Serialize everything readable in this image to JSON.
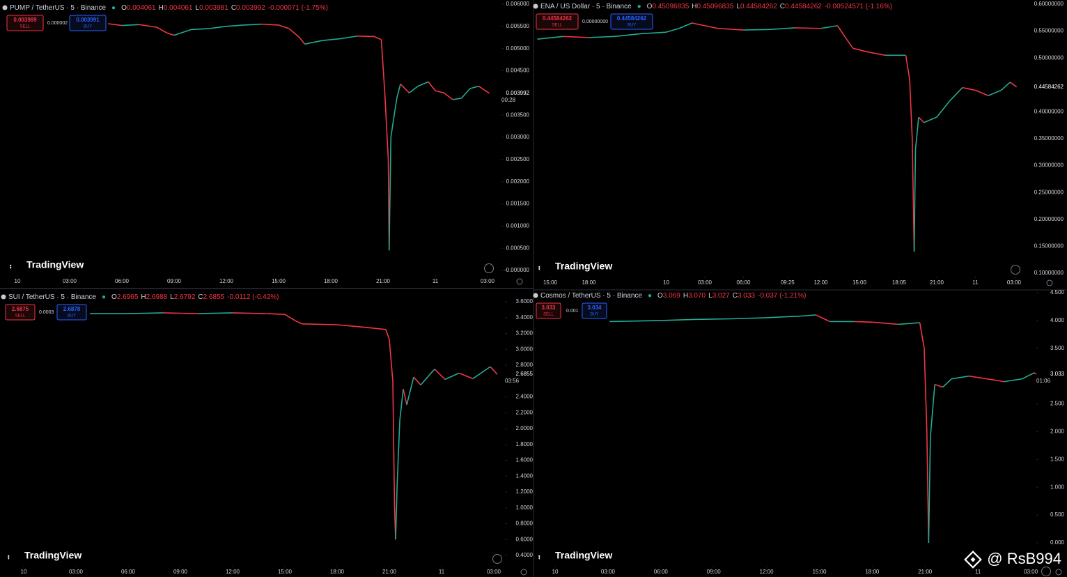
{
  "chart_data": [
    {
      "type": "line",
      "title": "PUMP / TetherUS · 5 · Binance",
      "ohlc": [
        {
          "label": "O",
          "value": "0.004061"
        },
        {
          "label": "H",
          "value": "0.004061"
        },
        {
          "label": "L",
          "value": "0.003981"
        },
        {
          "label": "C",
          "value": "0.003992"
        }
      ],
      "change": "-0.000071 (-1.75%)",
      "sell": {
        "price": "0.003989",
        "label": "SELL"
      },
      "spread": "0.000002",
      "buy": {
        "price": "0.003991",
        "label": "BUY"
      },
      "last_price": "0.003992",
      "countdown": "00:28",
      "logo": "TradingView",
      "up_color": "#22ab94",
      "down_color": "#f23645",
      "x": [
        5.2,
        6,
        7,
        8,
        8.6,
        9,
        10,
        11,
        12,
        13,
        14,
        15,
        15.6,
        16.2,
        16.5,
        17.5,
        18.5,
        19.5,
        20.5,
        20.9,
        21.0,
        21.1,
        21.3,
        21.35,
        21.45,
        21.6,
        21.8,
        22.0,
        22.5,
        23,
        23.6,
        24,
        24.5,
        25,
        25.5,
        26,
        26.5,
        27.1
      ],
      "values": [
        0.00556,
        0.00552,
        0.00554,
        0.00548,
        0.00535,
        0.0053,
        0.00543,
        0.00545,
        0.0055,
        0.00553,
        0.00555,
        0.00553,
        0.00545,
        0.00525,
        0.0051,
        0.00518,
        0.00522,
        0.00528,
        0.00527,
        0.0052,
        0.0046,
        0.004,
        0.0025,
        0.00045,
        0.003,
        0.0034,
        0.0039,
        0.0042,
        0.004,
        0.00415,
        0.00425,
        0.00405,
        0.004,
        0.00385,
        0.00388,
        0.0041,
        0.00415,
        0.003992
      ],
      "xlim": [
        -1,
        27.8
      ],
      "xticks": [
        {
          "value": 0,
          "label": "10"
        },
        {
          "value": 3,
          "label": "03:00"
        },
        {
          "value": 6,
          "label": "06:00"
        },
        {
          "value": 9,
          "label": "09:00"
        },
        {
          "value": 12,
          "label": "12:00"
        },
        {
          "value": 15,
          "label": "15:00"
        },
        {
          "value": 18,
          "label": "18:00"
        },
        {
          "value": 21,
          "label": "21:00"
        },
        {
          "value": 24,
          "label": "11"
        },
        {
          "value": 27,
          "label": "03:00"
        }
      ],
      "ylim": [
        0,
        0.006
      ],
      "yticks": [
        {
          "value": 0.006,
          "label": "0.006000"
        },
        {
          "value": 0.0055,
          "label": "0.005500"
        },
        {
          "value": 0.005,
          "label": "0.005000"
        },
        {
          "value": 0.0045,
          "label": "0.004500"
        },
        {
          "value": 0.0035,
          "label": "0.003500"
        },
        {
          "value": 0.003,
          "label": "0.003000"
        },
        {
          "value": 0.0025,
          "label": "0.002500"
        },
        {
          "value": 0.002,
          "label": "0.002000"
        },
        {
          "value": 0.0015,
          "label": "0.001500"
        },
        {
          "value": 0.001,
          "label": "0.001000"
        },
        {
          "value": 0.0005,
          "label": "0.000500"
        },
        {
          "value": 0,
          "label": "-0.000000"
        }
      ]
    },
    {
      "type": "line",
      "title": "ENA / US Dollar · 5 · Binance",
      "ohlc": [
        {
          "label": "O",
          "value": "0.45096835"
        },
        {
          "label": "H",
          "value": "0.45096835"
        },
        {
          "label": "L",
          "value": "0.44584262"
        },
        {
          "label": "C",
          "value": "0.44584262"
        }
      ],
      "change": "-0.00524571 (-1.16%)",
      "sell": {
        "price": "0.44584262",
        "label": "SELL"
      },
      "spread": "0.00000000",
      "buy": {
        "price": "0.44584262",
        "label": "BUY"
      },
      "last_price": "0.44584262",
      "logo": "TradingView",
      "up_color": "#22ab94",
      "down_color": "#f23645",
      "x": [
        -10,
        -8,
        -6,
        -4,
        -2,
        0,
        1,
        2,
        4,
        6,
        8,
        10,
        12,
        13.3,
        14,
        14.5,
        15.5,
        17,
        18.6,
        18.9,
        19.1,
        19.25,
        19.35,
        19.6,
        20,
        21,
        22,
        23,
        24,
        25,
        26,
        26.7,
        27.2
      ],
      "values": [
        0.535,
        0.54,
        0.538,
        0.54,
        0.545,
        0.548,
        0.555,
        0.565,
        0.555,
        0.552,
        0.553,
        0.556,
        0.555,
        0.56,
        0.535,
        0.518,
        0.512,
        0.505,
        0.505,
        0.46,
        0.35,
        0.14,
        0.33,
        0.39,
        0.38,
        0.39,
        0.42,
        0.445,
        0.44,
        0.43,
        0.44,
        0.455,
        0.446
      ],
      "xlim": [
        -10,
        28.3
      ],
      "xticks": [
        {
          "value": -9,
          "label": "15:00"
        },
        {
          "value": -6,
          "label": "18:00"
        },
        {
          "value": 0,
          "label": "10"
        },
        {
          "value": 3,
          "label": "03:00"
        },
        {
          "value": 6,
          "label": "06:00"
        },
        {
          "value": 9.42,
          "label": "09:25"
        },
        {
          "value": 12,
          "label": "12:00"
        },
        {
          "value": 15,
          "label": "15:00"
        },
        {
          "value": 18.08,
          "label": "18:05"
        },
        {
          "value": 21,
          "label": "21:00"
        },
        {
          "value": 24,
          "label": "11"
        },
        {
          "value": 27,
          "label": "03:00"
        }
      ],
      "ylim": [
        0.1,
        0.6
      ],
      "yticks": [
        {
          "value": 0.6,
          "label": "0.60000000"
        },
        {
          "value": 0.55,
          "label": "0.55000000"
        },
        {
          "value": 0.5,
          "label": "0.50000000"
        },
        {
          "value": 0.4,
          "label": "0.40000000"
        },
        {
          "value": 0.35,
          "label": "0.35000000"
        },
        {
          "value": 0.3,
          "label": "0.30000000"
        },
        {
          "value": 0.25,
          "label": "0.25000000"
        },
        {
          "value": 0.2,
          "label": "0.20000000"
        },
        {
          "value": 0.15,
          "label": "0.15000000"
        },
        {
          "value": 0.1,
          "label": "0.10000000"
        }
      ]
    },
    {
      "type": "line",
      "title": "SUI / TetherUS · 5 · Binance",
      "ohlc": [
        {
          "label": "O",
          "value": "2.6965"
        },
        {
          "label": "H",
          "value": "2.6988"
        },
        {
          "label": "L",
          "value": "2.6792"
        },
        {
          "label": "C",
          "value": "2.6855"
        }
      ],
      "change": "-0.0112 (-0.42%)",
      "sell": {
        "price": "2.6875",
        "label": "SELL"
      },
      "spread": "0.0003",
      "buy": {
        "price": "2.6878",
        "label": "BUY"
      },
      "last_price": "2.6855",
      "countdown": "03:56",
      "logo": "TradingView",
      "up_color": "#22ab94",
      "down_color": "#f23645",
      "x": [
        3.8,
        6,
        8,
        10,
        12,
        14,
        15,
        15.6,
        16,
        18,
        19.5,
        20.8,
        21.0,
        21.2,
        21.3,
        21.36,
        21.45,
        21.6,
        21.8,
        22.0,
        22.4,
        22.8,
        23.6,
        24.2,
        25,
        25.8,
        26.8,
        27.2
      ],
      "values": [
        3.45,
        3.45,
        3.46,
        3.45,
        3.46,
        3.45,
        3.44,
        3.36,
        3.32,
        3.31,
        3.28,
        3.25,
        3.12,
        2.6,
        1.0,
        0.6,
        1.3,
        2.1,
        2.5,
        2.3,
        2.65,
        2.55,
        2.75,
        2.62,
        2.7,
        2.63,
        2.78,
        2.6855
      ],
      "xlim": [
        -1,
        27.4
      ],
      "xticks": [
        {
          "value": 0,
          "label": "10"
        },
        {
          "value": 3,
          "label": "03:00"
        },
        {
          "value": 6,
          "label": "06:00"
        },
        {
          "value": 9,
          "label": "09:00"
        },
        {
          "value": 12,
          "label": "12:00"
        },
        {
          "value": 15,
          "label": "15:00"
        },
        {
          "value": 18,
          "label": "18:00"
        },
        {
          "value": 21,
          "label": "21:00"
        },
        {
          "value": 24,
          "label": "11"
        },
        {
          "value": 27,
          "label": "03:00"
        }
      ],
      "ylim": [
        0.4,
        3.6
      ],
      "yticks": [
        {
          "value": 3.6,
          "label": "3.6000"
        },
        {
          "value": 3.4,
          "label": "3.4000"
        },
        {
          "value": 3.2,
          "label": "3.2000"
        },
        {
          "value": 3.0,
          "label": "3.0000"
        },
        {
          "value": 2.8,
          "label": "2.8000"
        },
        {
          "value": 2.4,
          "label": "2.4000"
        },
        {
          "value": 2.2,
          "label": "2.2000"
        },
        {
          "value": 2.0,
          "label": "2.0000"
        },
        {
          "value": 1.8,
          "label": "1.8000"
        },
        {
          "value": 1.6,
          "label": "1.6000"
        },
        {
          "value": 1.4,
          "label": "1.4000"
        },
        {
          "value": 1.2,
          "label": "1.2000"
        },
        {
          "value": 1.0,
          "label": "1.0000"
        },
        {
          "value": 0.8,
          "label": "0.8000"
        },
        {
          "value": 0.6,
          "label": "0.6000"
        },
        {
          "value": 0.4,
          "label": "0.4000"
        }
      ]
    },
    {
      "type": "line",
      "title": "Cosmos / TetherUS · 5 · Binance",
      "ohlc": [
        {
          "label": "O",
          "value": "3.069"
        },
        {
          "label": "H",
          "value": "3.070"
        },
        {
          "label": "L",
          "value": "3.027"
        },
        {
          "label": "C",
          "value": "3.033"
        }
      ],
      "change": "-0.037 (-1.21%)",
      "sell": {
        "price": "3.033",
        "label": "SELL"
      },
      "spread": "0.001",
      "buy": {
        "price": "3.034",
        "label": "BUY"
      },
      "last_price": "3.033",
      "countdown": "01:06",
      "logo": "TradingView",
      "up_color": "#22ab94",
      "down_color": "#f23645",
      "x": [
        3.1,
        6,
        8,
        10,
        12,
        14,
        14.8,
        15.6,
        17,
        18,
        19.5,
        20.7,
        20.95,
        21.1,
        21.2,
        21.3,
        21.55,
        22,
        22.5,
        23.5,
        24.5,
        25.5,
        26.5,
        27.2,
        27.3
      ],
      "values": [
        3.98,
        4.0,
        4.02,
        4.03,
        4.05,
        4.08,
        4.1,
        3.98,
        3.98,
        3.97,
        3.93,
        3.96,
        3.5,
        2.0,
        0.0,
        1.9,
        2.85,
        2.8,
        2.95,
        3.0,
        2.95,
        2.9,
        2.95,
        3.06,
        3.033
      ],
      "xlim": [
        -1,
        28.5
      ],
      "xticks": [
        {
          "value": 0,
          "label": "10"
        },
        {
          "value": 3,
          "label": "03:00"
        },
        {
          "value": 6,
          "label": "06:00"
        },
        {
          "value": 9,
          "label": "09:00"
        },
        {
          "value": 12,
          "label": "12:00"
        },
        {
          "value": 15,
          "label": "15:00"
        },
        {
          "value": 18,
          "label": "18:00"
        },
        {
          "value": 21,
          "label": "21:00"
        },
        {
          "value": 24,
          "label": "11"
        },
        {
          "value": 27,
          "label": "03:00"
        }
      ],
      "ylim": [
        0,
        4.5
      ],
      "yticks": [
        {
          "value": 4.5,
          "label": "4.500"
        },
        {
          "value": 4.0,
          "label": "4.000"
        },
        {
          "value": 3.5,
          "label": "3.500"
        },
        {
          "value": 2.5,
          "label": "2.500"
        },
        {
          "value": 2.0,
          "label": "2.000"
        },
        {
          "value": 1.5,
          "label": "1.500"
        },
        {
          "value": 1.0,
          "label": "1.000"
        },
        {
          "value": 0.5,
          "label": "0.500"
        },
        {
          "value": 0,
          "label": "0.000"
        }
      ]
    }
  ],
  "watermark": "@ RsB994"
}
